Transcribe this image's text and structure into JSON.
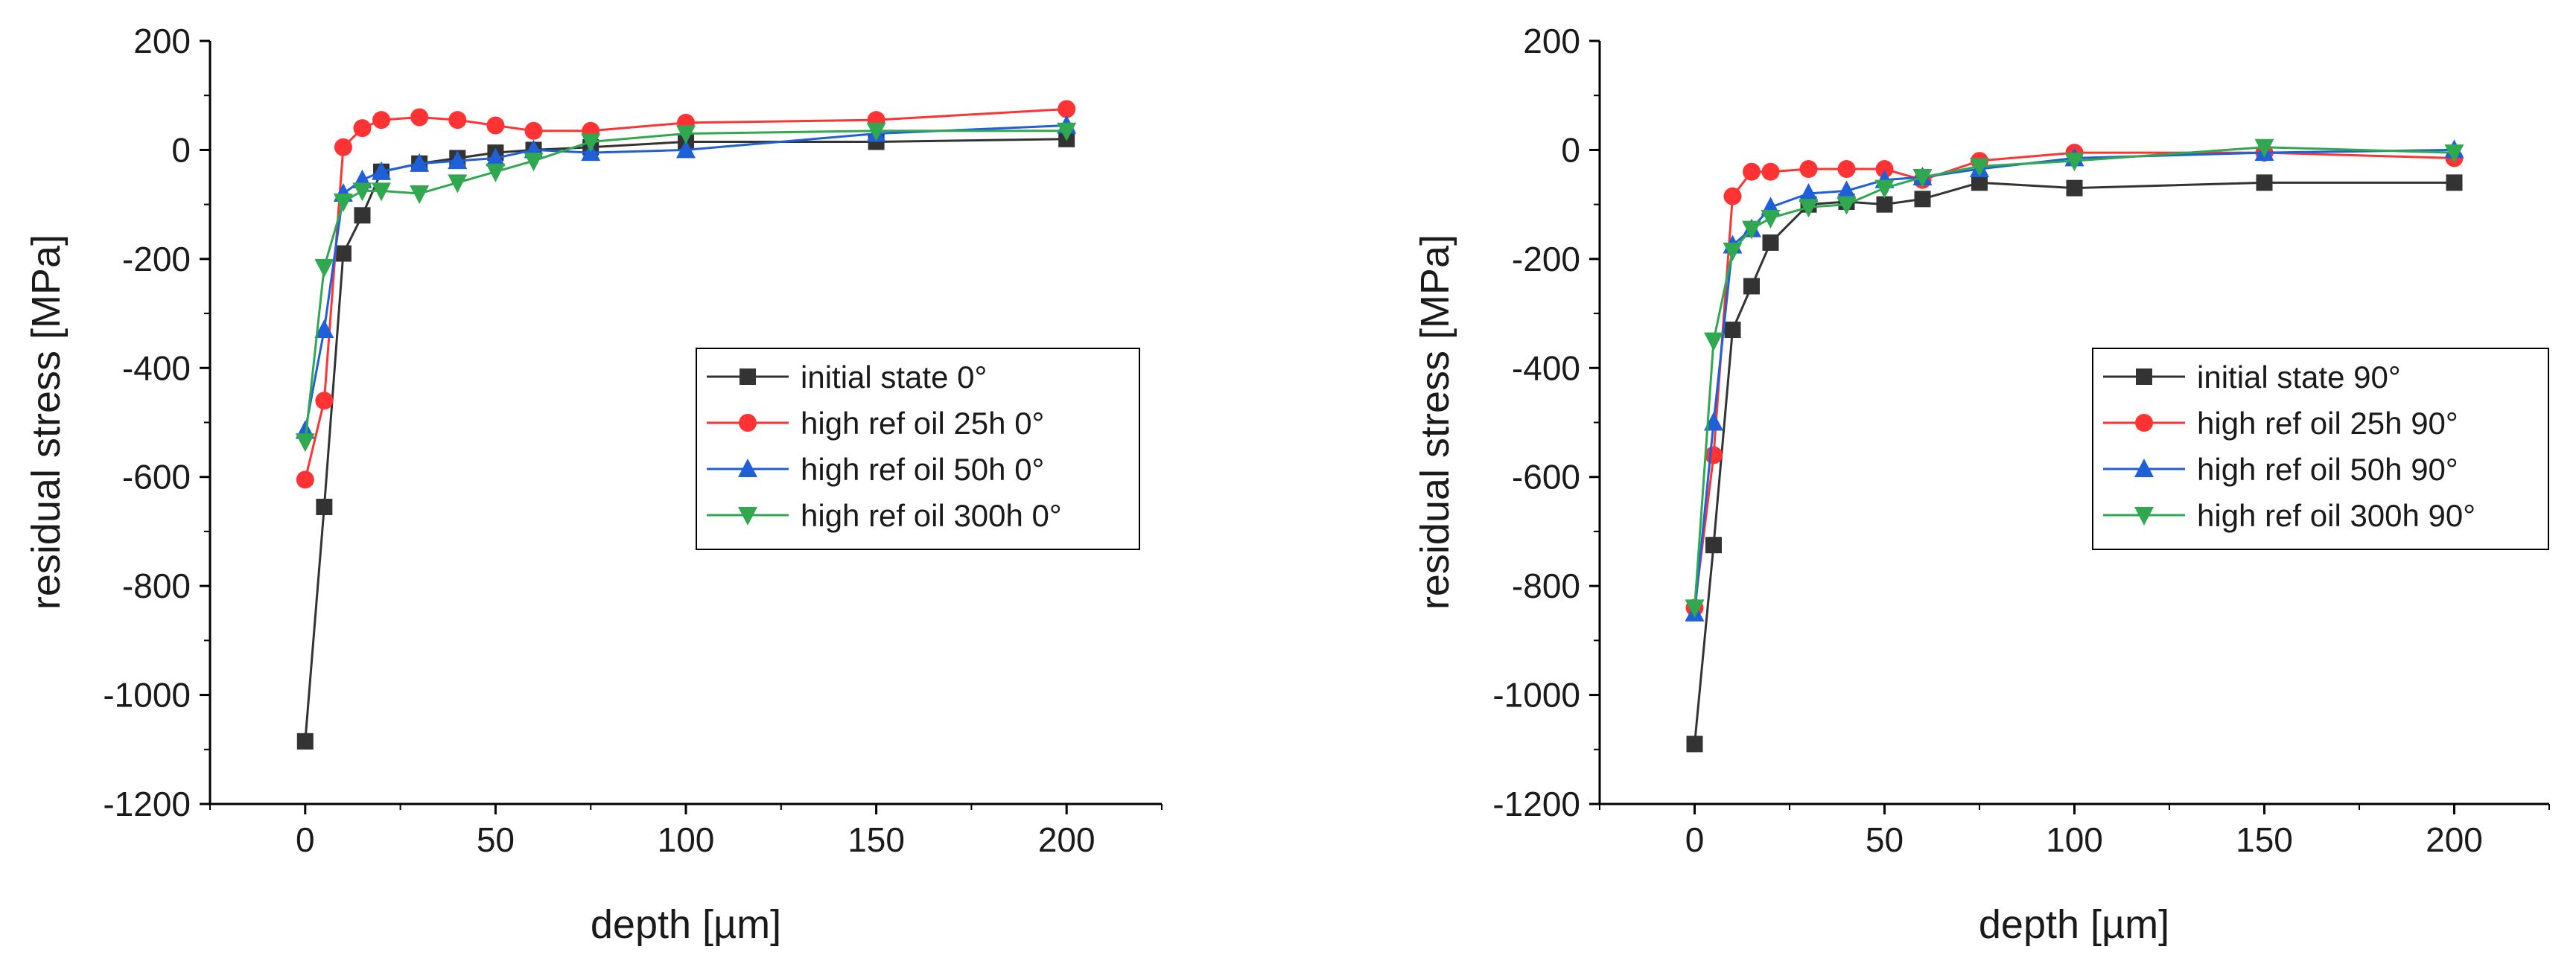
{
  "colors": {
    "initial": "#333333",
    "h25": "#ff3333",
    "h50": "#1f5fd8",
    "h300": "#2fa84f",
    "axis": "#000000",
    "legend_border": "#000000"
  },
  "chart_data": [
    {
      "type": "line",
      "xlabel": "depth [µm]",
      "ylabel": "residual stress [MPa]",
      "xlim": [
        -25,
        225
      ],
      "ylim": [
        -1200,
        200
      ],
      "xticks": [
        0,
        50,
        100,
        150,
        200
      ],
      "yticks": [
        200,
        0,
        -200,
        -400,
        -600,
        -800,
        -1000,
        -1200
      ],
      "xtick_labels": [
        "0",
        "50",
        "100",
        "150",
        "200"
      ],
      "ytick_labels": [
        "200",
        "0",
        "-200",
        "-400",
        "-600",
        "-800",
        "-1000",
        "-1200"
      ],
      "legend_position": "center-right",
      "series": [
        {
          "name": "initial state 0°",
          "marker": "square",
          "color_key": "initial",
          "x": [
            0,
            5,
            10,
            15,
            20,
            30,
            40,
            50,
            60,
            75,
            100,
            150,
            200
          ],
          "y": [
            -1085,
            -655,
            -190,
            -120,
            -40,
            -25,
            -15,
            -5,
            0,
            5,
            15,
            15,
            20
          ]
        },
        {
          "name": "high ref oil 25h 0°",
          "marker": "circle",
          "color_key": "h25",
          "x": [
            0,
            5,
            10,
            15,
            20,
            30,
            40,
            50,
            60,
            75,
            100,
            150,
            200
          ],
          "y": [
            -605,
            -460,
            5,
            40,
            55,
            60,
            55,
            45,
            35,
            35,
            50,
            55,
            75
          ]
        },
        {
          "name": "high ref oil 50h 0°",
          "marker": "triangle-up",
          "color_key": "h50",
          "x": [
            0,
            5,
            10,
            15,
            20,
            30,
            40,
            50,
            60,
            75,
            100,
            150,
            200
          ],
          "y": [
            -515,
            -330,
            -80,
            -55,
            -40,
            -25,
            -20,
            -15,
            0,
            -5,
            0,
            30,
            45
          ]
        },
        {
          "name": "high ref oil 300h 0°",
          "marker": "triangle-down",
          "color_key": "h300",
          "x": [
            0,
            5,
            10,
            15,
            20,
            30,
            40,
            50,
            60,
            75,
            100,
            150,
            200
          ],
          "y": [
            -535,
            -215,
            -95,
            -75,
            -75,
            -80,
            -60,
            -40,
            -20,
            15,
            30,
            35,
            35
          ]
        }
      ]
    },
    {
      "type": "line",
      "xlabel": "depth [µm]",
      "ylabel": "residual stress [MPa]",
      "xlim": [
        -25,
        225
      ],
      "ylim": [
        -1200,
        200
      ],
      "xticks": [
        0,
        50,
        100,
        150,
        200
      ],
      "yticks": [
        200,
        0,
        -200,
        -400,
        -600,
        -800,
        -1000,
        -1200
      ],
      "xtick_labels": [
        "0",
        "50",
        "100",
        "150",
        "200"
      ],
      "ytick_labels": [
        "200",
        "0",
        "-200",
        "-400",
        "-600",
        "-800",
        "-1000",
        "-1200"
      ],
      "legend_position": "center-right",
      "series": [
        {
          "name": "initial state 90°",
          "marker": "square",
          "color_key": "initial",
          "x": [
            0,
            5,
            10,
            15,
            20,
            30,
            40,
            50,
            60,
            75,
            100,
            150,
            200
          ],
          "y": [
            -1090,
            -725,
            -330,
            -250,
            -170,
            -100,
            -95,
            -100,
            -90,
            -60,
            -70,
            -60,
            -60
          ]
        },
        {
          "name": "high ref oil 25h 90°",
          "marker": "circle",
          "color_key": "h25",
          "x": [
            0,
            5,
            10,
            15,
            20,
            30,
            40,
            50,
            60,
            75,
            100,
            150,
            200
          ],
          "y": [
            -840,
            -560,
            -85,
            -40,
            -40,
            -35,
            -35,
            -35,
            -55,
            -20,
            -5,
            -5,
            -15
          ]
        },
        {
          "name": "high ref oil 50h 90°",
          "marker": "triangle-up",
          "color_key": "h50",
          "x": [
            0,
            5,
            10,
            15,
            20,
            30,
            40,
            50,
            60,
            75,
            100,
            150,
            200
          ],
          "y": [
            -850,
            -500,
            -175,
            -145,
            -105,
            -80,
            -75,
            -55,
            -50,
            -35,
            -15,
            -5,
            0
          ]
        },
        {
          "name": "high ref oil 300h 90°",
          "marker": "triangle-down",
          "color_key": "h300",
          "x": [
            0,
            5,
            10,
            15,
            20,
            30,
            40,
            50,
            60,
            75,
            100,
            150,
            200
          ],
          "y": [
            -840,
            -350,
            -185,
            -145,
            -125,
            -105,
            -100,
            -70,
            -50,
            -30,
            -20,
            5,
            -5
          ]
        }
      ]
    }
  ]
}
